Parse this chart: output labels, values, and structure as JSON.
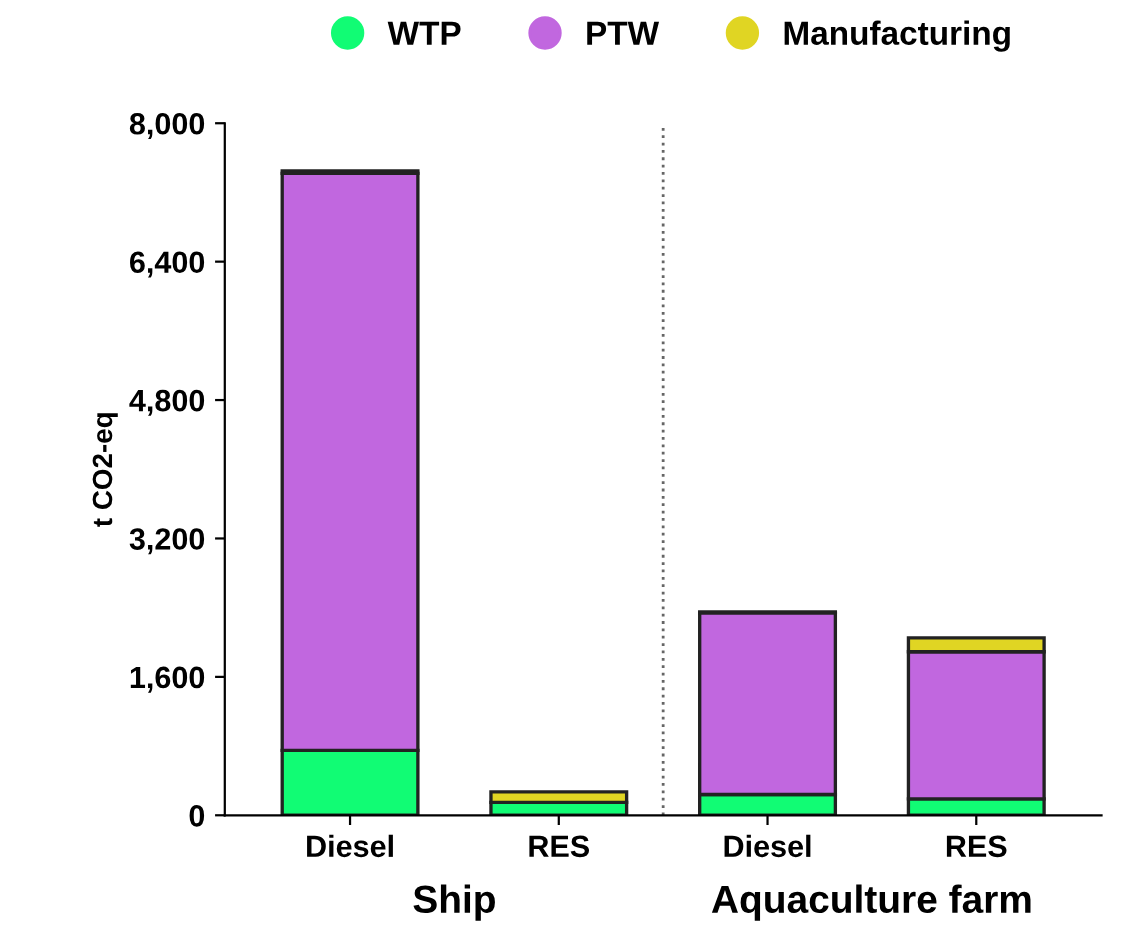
{
  "chart_data": {
    "type": "bar",
    "stacked": true,
    "ylabel": "t CO2-eq",
    "categories": [
      "Diesel",
      "RES",
      "Diesel",
      "RES"
    ],
    "series": [
      {
        "name": "WTP",
        "color": "#11fc74",
        "values": [
          750,
          150,
          240,
          190
        ]
      },
      {
        "name": "PTW",
        "color": "#c167df",
        "values": [
          6670,
          0,
          2100,
          1700
        ]
      },
      {
        "name": "Manufacturing",
        "color": "#e0d523",
        "values": [
          30,
          120,
          10,
          160
        ]
      }
    ],
    "ylim": [
      0,
      8000
    ],
    "yticks": [
      {
        "value": 0,
        "label": "0"
      },
      {
        "value": 1600,
        "label": "1,600"
      },
      {
        "value": 3200,
        "label": "3,200"
      },
      {
        "value": 4800,
        "label": "4,800"
      },
      {
        "value": 6400,
        "label": "6,400"
      },
      {
        "value": 8000,
        "label": "8,000"
      }
    ],
    "annotations": [
      "Ship",
      "Aquaculture farm"
    ],
    "grid": false,
    "legend": "top"
  }
}
